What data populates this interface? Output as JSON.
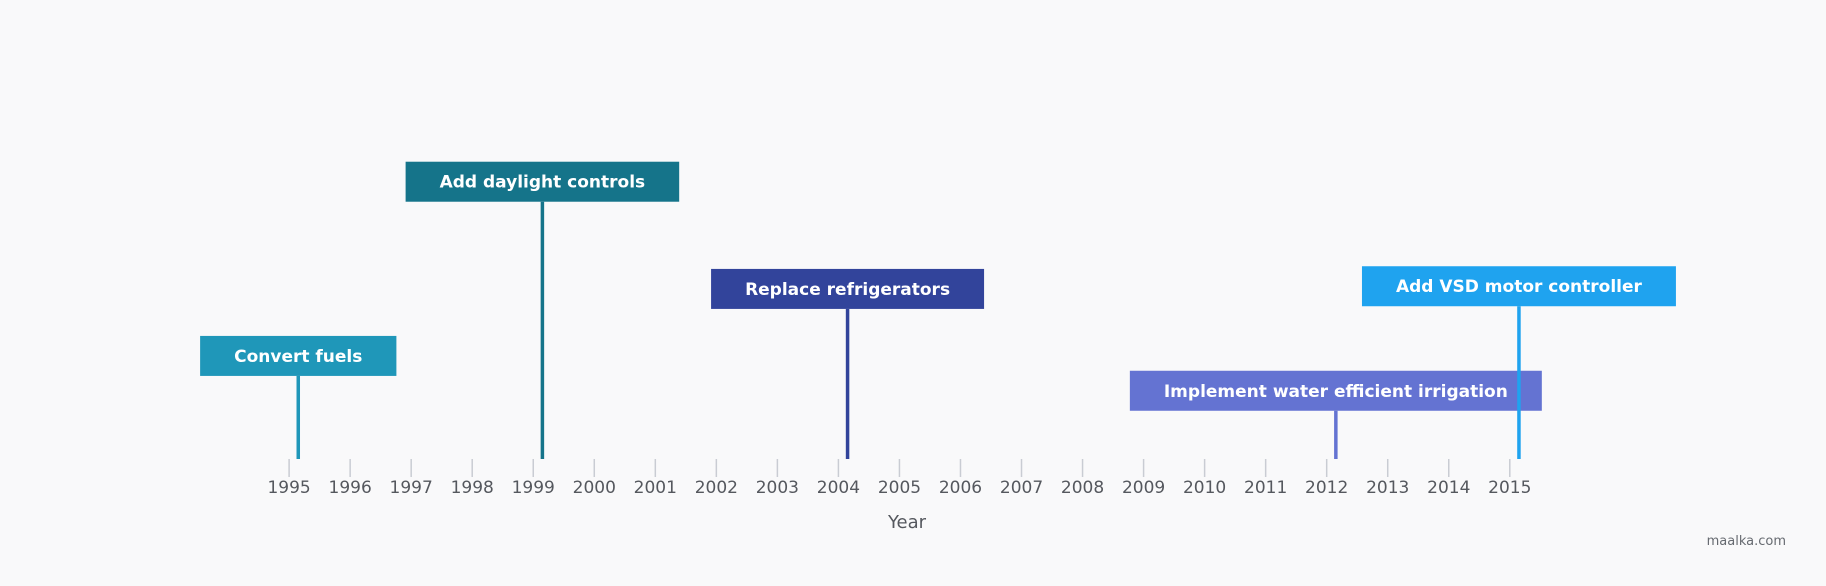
{
  "chart_data": {
    "type": "timeline",
    "xlabel": "Year",
    "xlim": [
      1994.9,
      2015.2
    ],
    "ticks": [
      1995,
      1996,
      1997,
      1998,
      1999,
      2000,
      2001,
      2002,
      2003,
      2004,
      2005,
      2006,
      2007,
      2008,
      2009,
      2010,
      2011,
      2012,
      2013,
      2014,
      2015
    ],
    "events": [
      {
        "label": "Convert fuels",
        "x": 1995.15,
        "level": 0.31,
        "color": "#1f97b9"
      },
      {
        "label": "Add daylight controls",
        "x": 1999.15,
        "level": 0.96,
        "color": "#15748a"
      },
      {
        "label": "Replace refrigerators",
        "x": 2004.15,
        "level": 0.56,
        "color": "#32449b"
      },
      {
        "label": "Implement water efficient irrigation",
        "x": 2012.15,
        "level": 0.18,
        "color": "#6473d2"
      },
      {
        "label": "Add VSD motor controller",
        "x": 2015.15,
        "level": 0.57,
        "color": "#1fa3ef"
      }
    ]
  },
  "watermark": "maalka.com"
}
